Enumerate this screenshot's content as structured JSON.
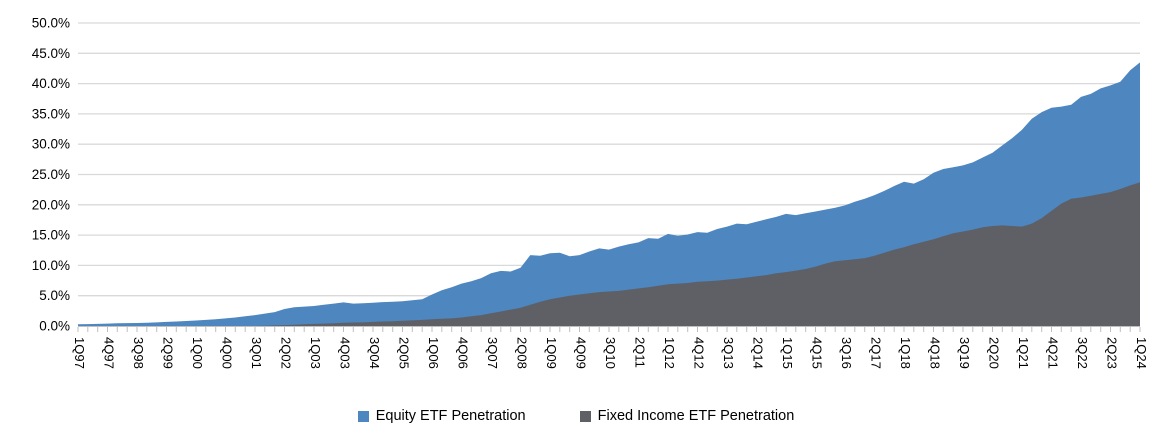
{
  "chart_data": {
    "type": "area",
    "title": "",
    "xlabel": "",
    "ylabel": "",
    "ylim": [
      0,
      50
    ],
    "ytick_step": 5,
    "ytick_labels": [
      "0.0%",
      "5.0%",
      "10.0%",
      "15.0%",
      "20.0%",
      "25.0%",
      "30.0%",
      "35.0%",
      "40.0%",
      "45.0%",
      "50.0%"
    ],
    "x_tick_labels": [
      "1Q97",
      "4Q97",
      "3Q98",
      "2Q99",
      "1Q00",
      "4Q00",
      "3Q01",
      "2Q02",
      "1Q03",
      "4Q03",
      "3Q04",
      "2Q05",
      "1Q06",
      "4Q06",
      "3Q07",
      "2Q08",
      "1Q09",
      "4Q09",
      "3Q10",
      "2Q11",
      "1Q12",
      "4Q12",
      "3Q13",
      "2Q14",
      "1Q15",
      "4Q15",
      "3Q16",
      "2Q17",
      "1Q18",
      "4Q18",
      "3Q19",
      "2Q20",
      "1Q21",
      "4Q21",
      "3Q22",
      "2Q23",
      "1Q24"
    ],
    "label_every_n_points": 3,
    "grid": true,
    "legend_position": "bottom-center",
    "series": [
      {
        "name": "Equity ETF Penetration",
        "color": "#4E86C0",
        "values": [
          0.3,
          0.32,
          0.35,
          0.4,
          0.45,
          0.48,
          0.5,
          0.55,
          0.6,
          0.68,
          0.75,
          0.82,
          0.9,
          1.0,
          1.1,
          1.25,
          1.4,
          1.6,
          1.8,
          2.05,
          2.3,
          2.8,
          3.1,
          3.2,
          3.3,
          3.5,
          3.7,
          3.9,
          3.7,
          3.75,
          3.85,
          3.95,
          4.0,
          4.1,
          4.25,
          4.4,
          5.2,
          5.9,
          6.4,
          7.0,
          7.4,
          7.9,
          8.7,
          9.1,
          9.0,
          9.6,
          11.7,
          11.6,
          12.0,
          12.1,
          11.5,
          11.7,
          12.3,
          12.8,
          12.6,
          13.1,
          13.5,
          13.8,
          14.5,
          14.4,
          15.2,
          14.9,
          15.1,
          15.5,
          15.4,
          16.0,
          16.4,
          16.9,
          16.8,
          17.2,
          17.6,
          18.0,
          18.5,
          18.3,
          18.6,
          18.9,
          19.2,
          19.5,
          19.9,
          20.5,
          21.0,
          21.6,
          22.3,
          23.1,
          23.8,
          23.5,
          24.2,
          25.3,
          25.9,
          26.2,
          26.5,
          27.0,
          27.8,
          28.6,
          29.8,
          31.0,
          32.4,
          34.2,
          35.3,
          36.0,
          36.2,
          36.5,
          37.8,
          38.3,
          39.2,
          39.7,
          40.3,
          42.2,
          43.5
        ]
      },
      {
        "name": "Fixed Income ETF Penetration",
        "color": "#5E6066",
        "values": [
          0,
          0,
          0,
          0,
          0,
          0,
          0,
          0,
          0,
          0,
          0,
          0,
          0,
          0,
          0,
          0,
          0,
          0,
          0,
          0.05,
          0.1,
          0.15,
          0.2,
          0.28,
          0.35,
          0.4,
          0.45,
          0.55,
          0.58,
          0.6,
          0.68,
          0.75,
          0.8,
          0.85,
          0.92,
          1.0,
          1.1,
          1.18,
          1.25,
          1.4,
          1.6,
          1.8,
          2.1,
          2.4,
          2.7,
          3.0,
          3.5,
          4.0,
          4.4,
          4.7,
          5.0,
          5.2,
          5.4,
          5.6,
          5.7,
          5.8,
          6.0,
          6.2,
          6.4,
          6.65,
          6.9,
          7.0,
          7.1,
          7.3,
          7.4,
          7.5,
          7.65,
          7.8,
          8.0,
          8.2,
          8.4,
          8.7,
          8.9,
          9.15,
          9.4,
          9.8,
          10.3,
          10.7,
          10.85,
          11.0,
          11.2,
          11.6,
          12.1,
          12.6,
          13.0,
          13.5,
          13.9,
          14.3,
          14.8,
          15.3,
          15.6,
          15.9,
          16.3,
          16.5,
          16.6,
          16.5,
          16.4,
          16.9,
          17.8,
          19.0,
          20.2,
          21.0,
          21.2,
          21.5,
          21.8,
          22.1,
          22.6,
          23.2,
          23.7
        ]
      }
    ],
    "colors": {
      "gridline": "#D9D9D9",
      "axis_line": "#BFBFBF",
      "tick": "#BFBFBF",
      "label_text": "#000000"
    }
  },
  "legend": {
    "items": [
      {
        "label": "Equity ETF Penetration",
        "color": "#4E86C0"
      },
      {
        "label": "Fixed Income ETF Penetration",
        "color": "#5E6066"
      }
    ]
  }
}
